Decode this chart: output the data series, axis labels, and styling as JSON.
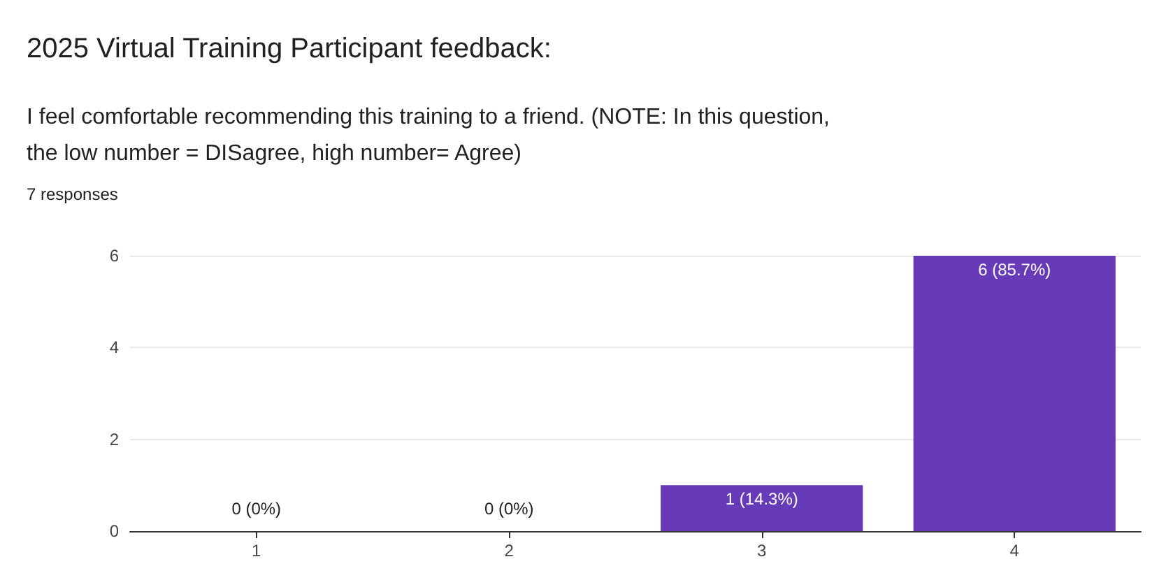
{
  "chart_data": {
    "type": "bar",
    "title": "2025 Virtual Training Participant feedback:",
    "subtitle": "I feel comfortable recommending this training to a friend. (NOTE: In this question, the low number = DISagree, high number= Agree)",
    "annotations": [
      "7 responses"
    ],
    "categories": [
      "1",
      "2",
      "3",
      "4"
    ],
    "values": [
      0,
      0,
      1,
      6
    ],
    "value_labels": [
      "0 (0%)",
      "0 (0%)",
      "1 (14.3%)",
      "6 (85.7%)"
    ],
    "color": "#673ab7",
    "ylim": [
      0,
      6
    ],
    "yticks": [
      0,
      2,
      4,
      6
    ],
    "grid": "y"
  }
}
